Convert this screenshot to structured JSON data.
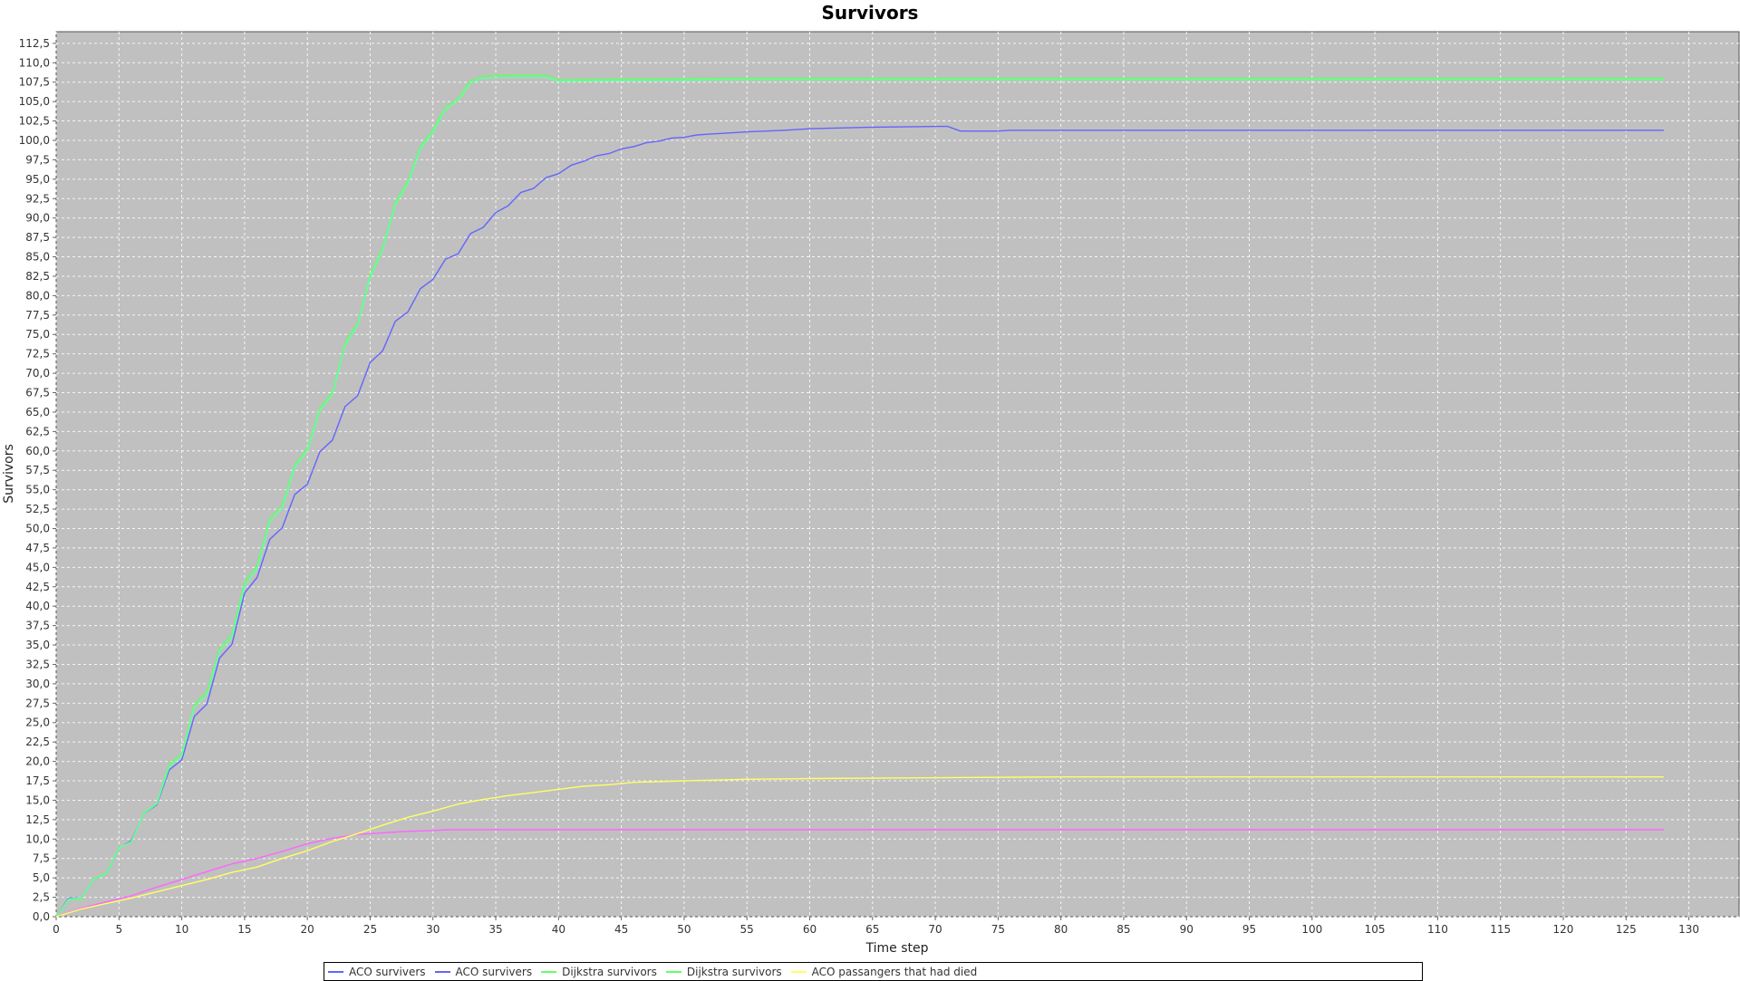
{
  "chart_data": {
    "type": "line",
    "title": "Survivors",
    "xlabel": "Time step",
    "ylabel": "Survivors",
    "xlim": [
      0,
      134
    ],
    "ylim": [
      0,
      114
    ],
    "x_ticks": [
      0,
      5,
      10,
      15,
      20,
      25,
      30,
      35,
      40,
      45,
      50,
      55,
      60,
      65,
      70,
      75,
      80,
      85,
      90,
      95,
      100,
      105,
      110,
      115,
      120,
      125,
      130
    ],
    "y_ticks": [
      "0,0",
      "2,5",
      "5,0",
      "7,5",
      "10,0",
      "12,5",
      "15,0",
      "17,5",
      "20,0",
      "22,5",
      "25,0",
      "27,5",
      "30,0",
      "32,5",
      "35,0",
      "37,5",
      "40,0",
      "42,5",
      "45,0",
      "47,5",
      "50,0",
      "52,5",
      "55,0",
      "57,5",
      "60,0",
      "62,5",
      "65,0",
      "67,5",
      "70,0",
      "72,5",
      "75,0",
      "77,5",
      "80,0",
      "82,5",
      "85,0",
      "87,5",
      "90,0",
      "92,5",
      "95,0",
      "97,5",
      "100,0",
      "102,5",
      "105,0",
      "107,5",
      "110,0",
      "112,5"
    ],
    "y_tick_step": 2.5,
    "grid": true,
    "legend_position": "bottom",
    "background": "#c0c0c0",
    "series": [
      {
        "name": "ACO survivers",
        "color": "#6464ff",
        "points": [
          [
            0,
            0
          ],
          [
            1,
            2.4
          ],
          [
            2,
            2.4
          ],
          [
            3,
            4.8
          ],
          [
            4,
            5.5
          ],
          [
            5,
            8.8
          ],
          [
            6,
            9.8
          ],
          [
            7,
            13.3
          ],
          [
            8,
            14.4
          ],
          [
            9,
            18.9
          ],
          [
            10,
            20.2
          ],
          [
            11,
            25.8
          ],
          [
            12,
            27.4
          ],
          [
            13,
            33.3
          ],
          [
            14,
            35.1
          ],
          [
            15,
            41.7
          ],
          [
            16,
            43.7
          ],
          [
            17,
            48.6
          ],
          [
            18,
            50.1
          ],
          [
            19,
            54.4
          ],
          [
            20,
            55.7
          ],
          [
            21,
            59.9
          ],
          [
            22,
            61.4
          ],
          [
            23,
            65.7
          ],
          [
            24,
            67.1
          ],
          [
            25,
            71.4
          ],
          [
            26,
            72.9
          ],
          [
            27,
            76.7
          ],
          [
            28,
            77.9
          ],
          [
            29,
            80.9
          ],
          [
            30,
            82.1
          ],
          [
            31,
            84.7
          ],
          [
            32,
            85.4
          ],
          [
            33,
            88
          ],
          [
            34,
            88.8
          ],
          [
            35,
            90.7
          ],
          [
            36,
            91.6
          ],
          [
            37,
            93.3
          ],
          [
            38,
            93.8
          ],
          [
            39,
            95.2
          ],
          [
            40,
            95.7
          ],
          [
            41,
            96.8
          ],
          [
            42,
            97.3
          ],
          [
            43,
            98
          ],
          [
            44,
            98.3
          ],
          [
            45,
            98.9
          ],
          [
            46,
            99.2
          ],
          [
            47,
            99.7
          ],
          [
            48,
            99.9
          ],
          [
            49,
            100.3
          ],
          [
            50,
            100.4
          ],
          [
            51,
            100.7
          ],
          [
            52,
            100.8
          ],
          [
            54,
            101
          ],
          [
            55,
            101.1
          ],
          [
            58,
            101.3
          ],
          [
            60,
            101.5
          ],
          [
            65,
            101.7
          ],
          [
            70,
            101.8
          ],
          [
            71,
            101.8
          ],
          [
            72,
            101.2
          ],
          [
            75,
            101.2
          ],
          [
            76,
            101.3
          ],
          [
            128,
            101.3
          ]
        ]
      },
      {
        "name": "ACO survivers",
        "color": "#ff64ff",
        "points": [
          [
            0,
            0
          ],
          [
            2,
            1.1
          ],
          [
            4,
            1.9
          ],
          [
            6,
            2.7
          ],
          [
            8,
            3.8
          ],
          [
            10,
            4.8
          ],
          [
            12,
            5.8
          ],
          [
            14,
            6.8
          ],
          [
            16,
            7.5
          ],
          [
            18,
            8.4
          ],
          [
            20,
            9.4
          ],
          [
            22,
            10.1
          ],
          [
            24,
            10.6
          ],
          [
            26,
            10.8
          ],
          [
            28,
            11
          ],
          [
            30,
            11.1
          ],
          [
            31,
            11.2
          ],
          [
            128,
            11.2
          ]
        ]
      },
      {
        "name": "Dijkstra survivors",
        "color": "#64ff64",
        "points": [
          [
            0,
            0
          ],
          [
            1,
            2.2
          ],
          [
            2,
            2.3
          ],
          [
            3,
            4.9
          ],
          [
            4,
            5.6
          ],
          [
            5,
            8.9
          ],
          [
            6,
            9.6
          ],
          [
            7,
            13.4
          ],
          [
            8,
            14.6
          ],
          [
            9,
            19.6
          ],
          [
            10,
            21
          ],
          [
            11,
            27.3
          ],
          [
            12,
            29
          ],
          [
            13,
            34.5
          ],
          [
            14,
            36.4
          ],
          [
            15,
            43.1
          ],
          [
            16,
            45.2
          ],
          [
            17,
            51.3
          ],
          [
            18,
            53
          ],
          [
            19,
            58.2
          ],
          [
            20,
            60.3
          ],
          [
            21,
            65.5
          ],
          [
            22,
            67.6
          ],
          [
            23,
            73.9
          ],
          [
            24,
            76.4
          ],
          [
            25,
            82.7
          ],
          [
            26,
            86.2
          ],
          [
            27,
            92
          ],
          [
            28,
            94.7
          ],
          [
            29,
            99.2
          ],
          [
            30,
            101.3
          ],
          [
            31,
            104.3
          ],
          [
            32,
            105.4
          ],
          [
            33,
            107.7
          ],
          [
            34,
            108.3
          ],
          [
            36,
            108.4
          ],
          [
            39,
            108.4
          ],
          [
            40,
            107.8
          ],
          [
            45,
            107.9
          ],
          [
            55,
            108
          ],
          [
            128,
            108
          ]
        ]
      },
      {
        "name": "Dijkstra survivors",
        "color": "#64ffa0",
        "points": [
          [
            0,
            0
          ],
          [
            1,
            2.3
          ],
          [
            2,
            2.4
          ],
          [
            3,
            4.8
          ],
          [
            4,
            5.5
          ],
          [
            5,
            8.8
          ],
          [
            6,
            9.7
          ],
          [
            7,
            13.3
          ],
          [
            8,
            14.5
          ],
          [
            9,
            19.3
          ],
          [
            10,
            20.7
          ],
          [
            11,
            27
          ],
          [
            12,
            28.6
          ],
          [
            13,
            34.2
          ],
          [
            14,
            36
          ],
          [
            15,
            42.6
          ],
          [
            16,
            44.8
          ],
          [
            17,
            50.9
          ],
          [
            18,
            52.6
          ],
          [
            19,
            57.9
          ],
          [
            20,
            60
          ],
          [
            21,
            65.2
          ],
          [
            22,
            67.3
          ],
          [
            23,
            73.6
          ],
          [
            24,
            76.1
          ],
          [
            25,
            82.4
          ],
          [
            26,
            85.9
          ],
          [
            27,
            91.7
          ],
          [
            28,
            94.4
          ],
          [
            29,
            98.9
          ],
          [
            30,
            101
          ],
          [
            31,
            104
          ],
          [
            32,
            105.1
          ],
          [
            33,
            107.4
          ],
          [
            34,
            108
          ],
          [
            36,
            108.1
          ],
          [
            39,
            108.1
          ],
          [
            40,
            107.6
          ],
          [
            45,
            107.7
          ],
          [
            55,
            107.8
          ],
          [
            128,
            107.8
          ]
        ]
      },
      {
        "name": "ACO passangers that had died",
        "color": "#ffff64",
        "points": [
          [
            0,
            0
          ],
          [
            2,
            1
          ],
          [
            4,
            1.7
          ],
          [
            6,
            2.4
          ],
          [
            8,
            3.2
          ],
          [
            10,
            4
          ],
          [
            12,
            4.8
          ],
          [
            14,
            5.7
          ],
          [
            16,
            6.4
          ],
          [
            18,
            7.5
          ],
          [
            20,
            8.5
          ],
          [
            22,
            9.7
          ],
          [
            24,
            10.7
          ],
          [
            26,
            11.8
          ],
          [
            28,
            12.8
          ],
          [
            30,
            13.6
          ],
          [
            32,
            14.5
          ],
          [
            34,
            15.1
          ],
          [
            36,
            15.6
          ],
          [
            38,
            16
          ],
          [
            40,
            16.4
          ],
          [
            42,
            16.8
          ],
          [
            44,
            17
          ],
          [
            46,
            17.3
          ],
          [
            48,
            17.4
          ],
          [
            50,
            17.5
          ],
          [
            55,
            17.7
          ],
          [
            60,
            17.8
          ],
          [
            70,
            17.9
          ],
          [
            80,
            18
          ],
          [
            128,
            18
          ]
        ]
      }
    ]
  },
  "legend": {
    "items": [
      {
        "label": "ACO survivers",
        "color": "#6464ff"
      },
      {
        "label": "ACO survivers",
        "color": "#6464ff"
      },
      {
        "label": "Dijkstra survivors",
        "color": "#64ff64"
      },
      {
        "label": "Dijkstra survivors",
        "color": "#64ff64"
      },
      {
        "label": "ACO passangers that had died",
        "color": "#ffff64"
      }
    ]
  }
}
